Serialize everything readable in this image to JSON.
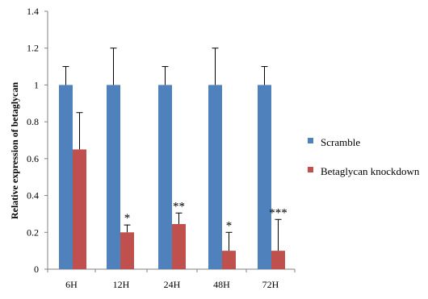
{
  "chart_data": {
    "type": "bar",
    "categories": [
      "6H",
      "12H",
      "24H",
      "48H",
      "72H"
    ],
    "ylabel": "Relative expression of betaglycan",
    "xlabel": "",
    "ylim": [
      0,
      1.4
    ],
    "yticks": [
      "0",
      "0.2",
      "0.4",
      "0.6",
      "0.8",
      "1",
      "1.2",
      "1.4"
    ],
    "ytick_values": [
      0,
      0.2,
      0.4,
      0.6,
      0.8,
      1.0,
      1.2,
      1.4
    ],
    "grid": false,
    "legend_position": "right",
    "series": [
      {
        "name": "Scramble",
        "color": "#4F81BD",
        "values": [
          1.0,
          1.0,
          1.0,
          1.0,
          1.0
        ],
        "errors": [
          0.1,
          0.2,
          0.1,
          0.2,
          0.1
        ]
      },
      {
        "name": "Betaglycan knockdown",
        "color": "#C0504D",
        "values": [
          0.65,
          0.2,
          0.245,
          0.1,
          0.1
        ],
        "errors": [
          0.2,
          0.04,
          0.06,
          0.1,
          0.17
        ]
      }
    ],
    "annotations": [
      "",
      "*",
      "**",
      "*",
      "***"
    ]
  }
}
